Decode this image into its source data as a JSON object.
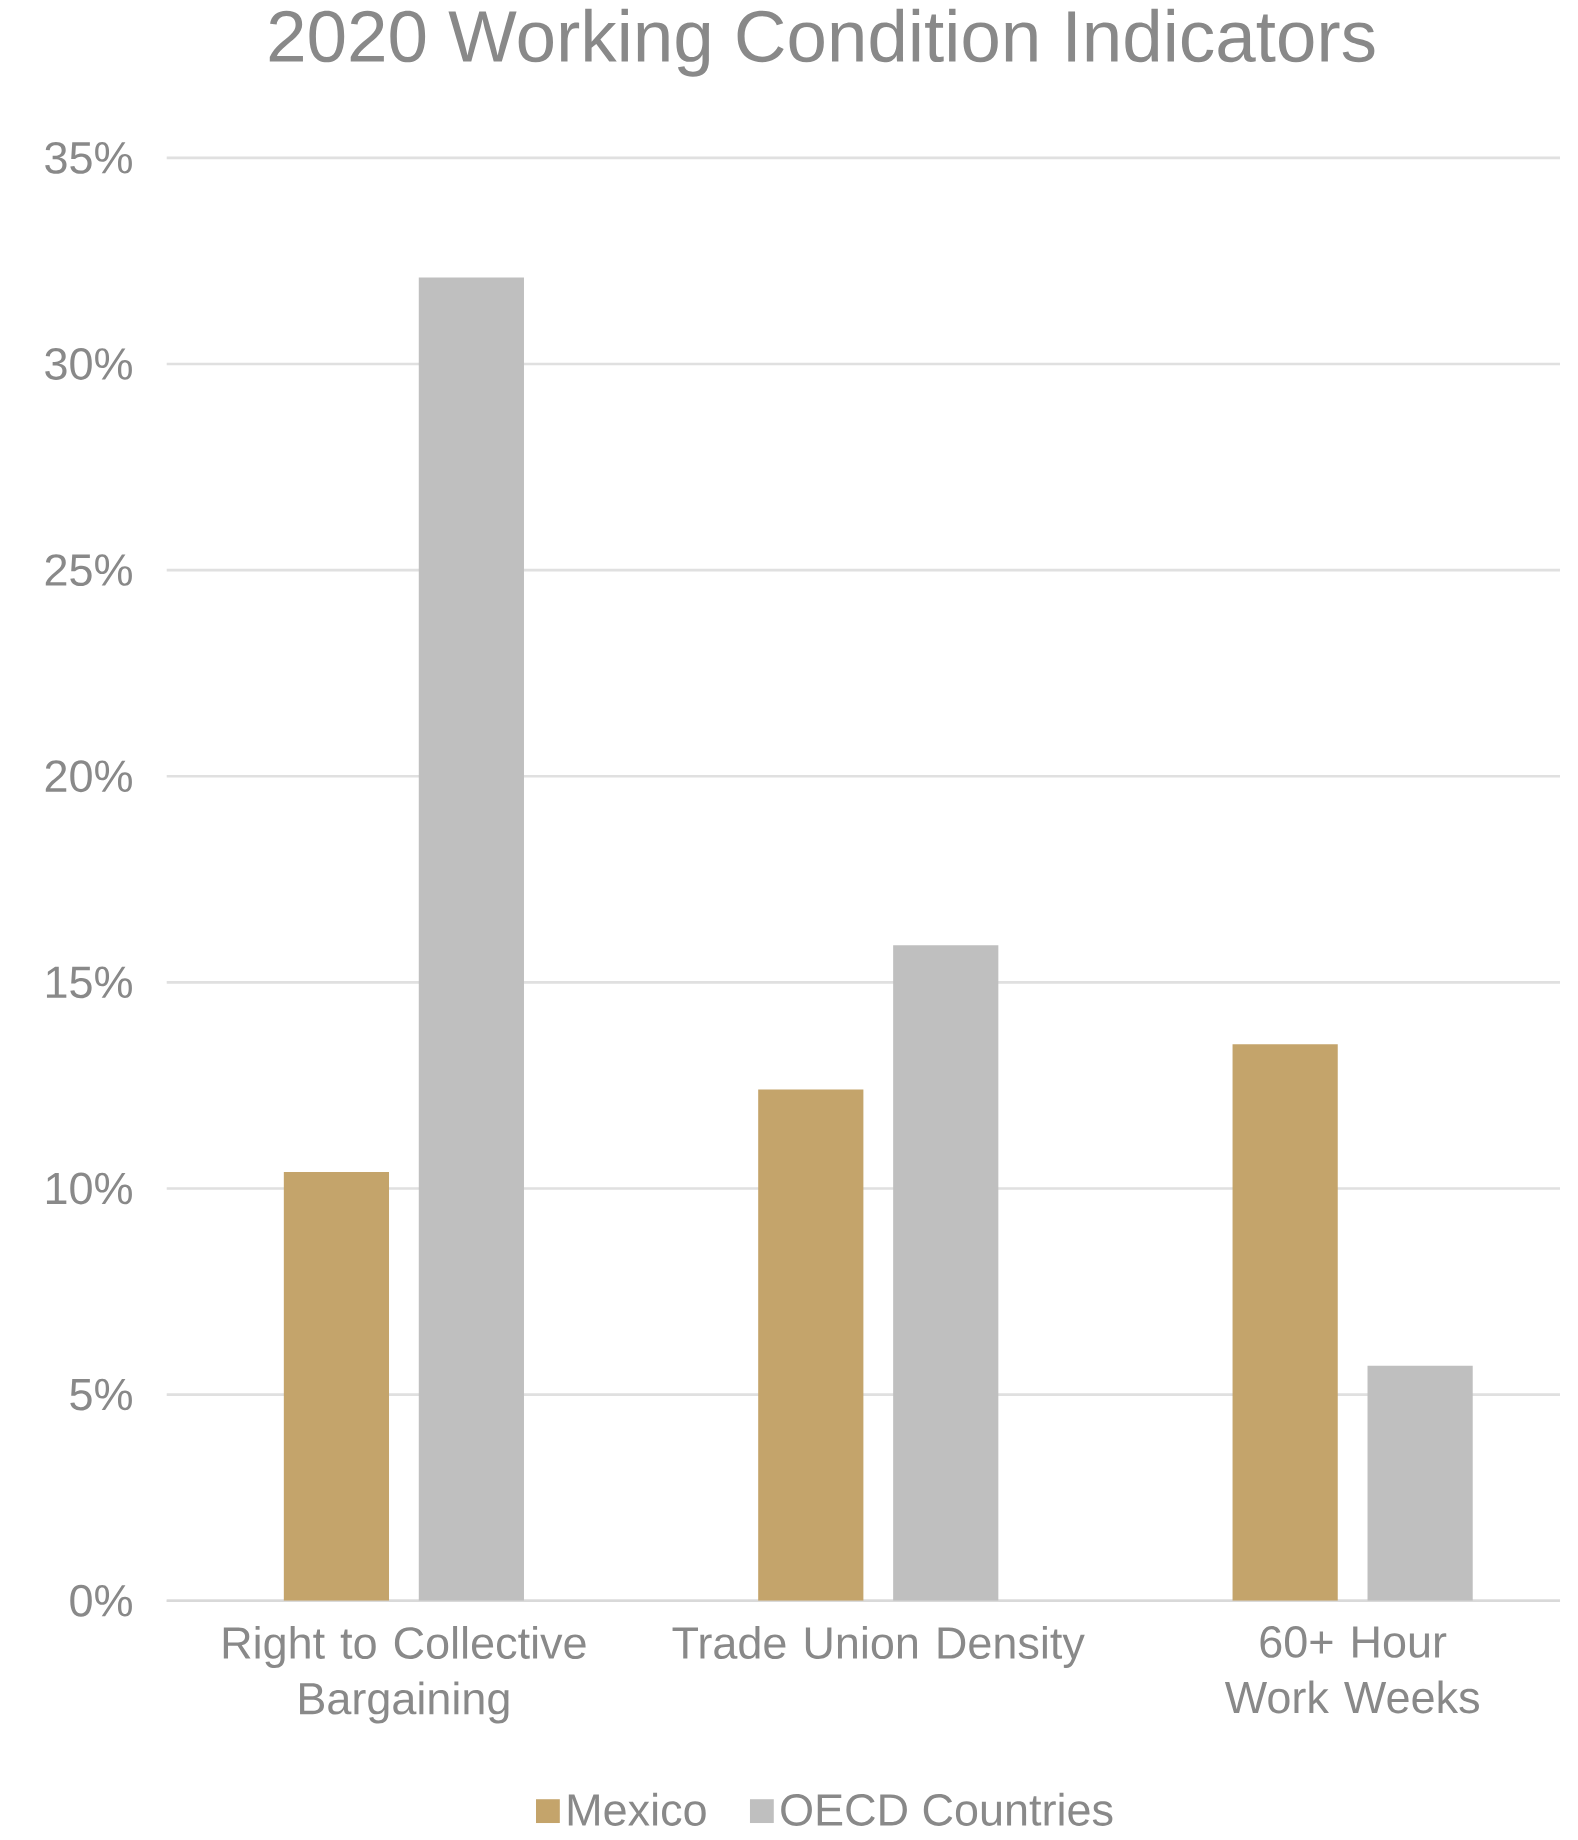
{
  "chart_data": {
    "type": "bar",
    "title": "2020 Working Condition Indicators",
    "categories": [
      "Right to Collective Bargaining",
      "Trade Union Density",
      "60+ Hour Work Weeks"
    ],
    "series": [
      {
        "name": "Mexico",
        "color": "#c4a46b",
        "values": [
          10.4,
          12.4,
          13.5
        ]
      },
      {
        "name": "OECD Countries",
        "color": "#bfbfbf",
        "values": [
          32.1,
          15.9,
          5.7
        ]
      }
    ],
    "ylim": [
      0,
      35
    ],
    "yticks": [
      {
        "value": 0,
        "label": "0%"
      },
      {
        "value": 5,
        "label": "5%"
      },
      {
        "value": 10,
        "label": "10%"
      },
      {
        "value": 15,
        "label": "15%"
      },
      {
        "value": 20,
        "label": "20%"
      },
      {
        "value": 25,
        "label": "25%"
      },
      {
        "value": 30,
        "label": "30%"
      },
      {
        "value": 35,
        "label": "35%"
      }
    ],
    "grid": "y",
    "legend": "bottom"
  }
}
